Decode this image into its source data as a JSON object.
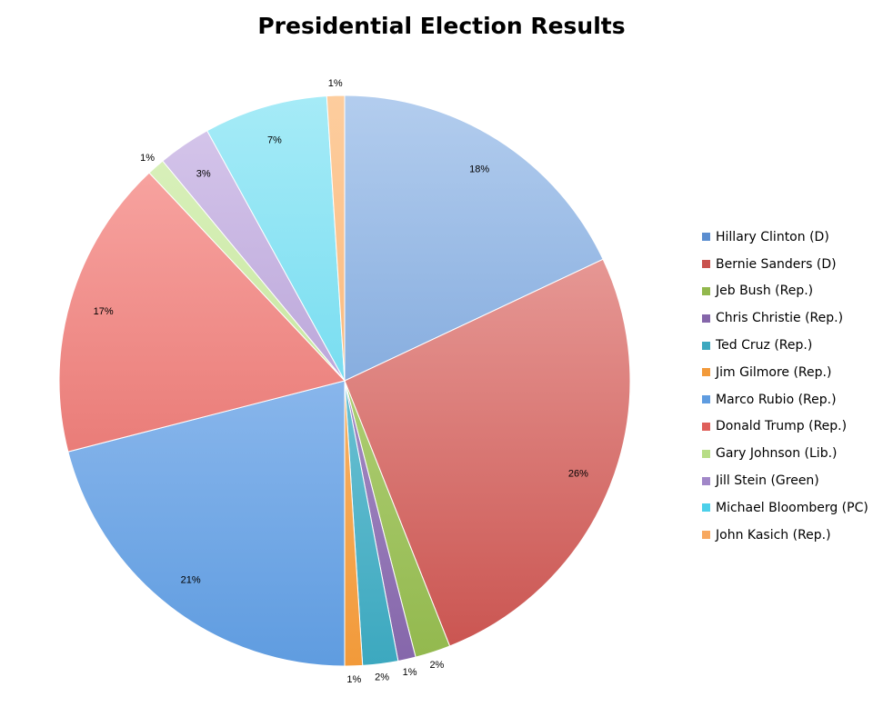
{
  "chart_data": {
    "type": "pie",
    "title": "Presidential Election Results",
    "legend_position": "right",
    "start_angle_deg": 0,
    "direction": "clockwise",
    "slices": [
      {
        "label": "Hillary Clinton (D)",
        "value": 18,
        "display": "18%",
        "color": "#5b8ed0",
        "color_light": "#b3cdee"
      },
      {
        "label": "Bernie Sanders (D)",
        "value": 26,
        "display": "26%",
        "color": "#c9524e",
        "color_light": "#f2b3b0"
      },
      {
        "label": "Jeb Bush (Rep.)",
        "value": 2,
        "display": "2%",
        "color": "#92b84d",
        "color_light": "#c9e39a"
      },
      {
        "label": "Chris Christie (Rep.)",
        "value": 1,
        "display": "1%",
        "color": "#8566aa",
        "color_light": "#c3b0de"
      },
      {
        "label": "Ted Cruz (Rep.)",
        "value": 2,
        "display": "2%",
        "color": "#3ca8bf",
        "color_light": "#9ad9e6"
      },
      {
        "label": "Jim Gilmore (Rep.)",
        "value": 1,
        "display": "1%",
        "color": "#f29a3a",
        "color_light": "#fcc891"
      },
      {
        "label": "Marco Rubio (Rep.)",
        "value": 21,
        "display": "21%",
        "color": "#5f9ce0",
        "color_light": "#b2d0f7"
      },
      {
        "label": "Donald Trump (Rep.)",
        "value": 17,
        "display": "17%",
        "color": "#df5f5a",
        "color_light": "#fbadaa"
      },
      {
        "label": "Gary Johnson (Lib.)",
        "value": 1,
        "display": "1%",
        "color": "#b7dd86",
        "color_light": "#dcf2c0"
      },
      {
        "label": "Jill Stein (Green)",
        "value": 3,
        "display": "3%",
        "color": "#a187c8",
        "color_light": "#d7c8ec"
      },
      {
        "label": "Michael Bloomberg (PC)",
        "value": 7,
        "display": "7%",
        "color": "#4cd0ea",
        "color_light": "#a6ebf7"
      },
      {
        "label": "John Kasich (Rep.)",
        "value": 1,
        "display": "1%",
        "color": "#f7a860",
        "color_light": "#fdcd9e"
      }
    ]
  }
}
